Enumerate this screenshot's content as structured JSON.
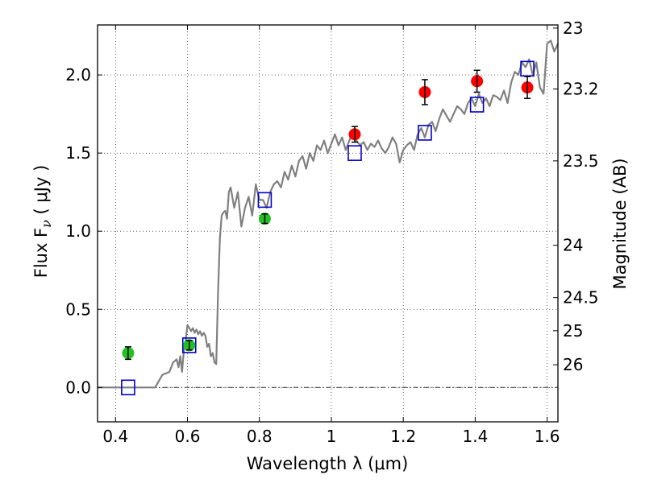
{
  "chart_data": {
    "type": "scatter",
    "title": "",
    "xlabel": "Wavelength  λ (μm)",
    "ylabel": "Flux  F",
    "ylabel_sub": "ν",
    "ylabel_unit": " ( μJy )",
    "y2label": "Magnitude (AB)",
    "xlim": [
      0.35,
      1.63
    ],
    "ylim": [
      -0.22,
      2.32
    ],
    "grid": true,
    "x_ticks": [
      {
        "value": 0.4,
        "label": "0.4"
      },
      {
        "value": 0.6,
        "label": "0.6"
      },
      {
        "value": 0.8,
        "label": "0.8"
      },
      {
        "value": 1.0,
        "label": "1"
      },
      {
        "value": 1.2,
        "label": "1.2"
      },
      {
        "value": 1.4,
        "label": "1.4"
      },
      {
        "value": 1.6,
        "label": "1.6"
      }
    ],
    "y_ticks": [
      {
        "value": 0.0,
        "label": "0.0"
      },
      {
        "value": 0.5,
        "label": "0.5"
      },
      {
        "value": 1.0,
        "label": "1.0"
      },
      {
        "value": 1.5,
        "label": "1.5"
      },
      {
        "value": 2.0,
        "label": "2.0"
      }
    ],
    "y2_ticks": [
      {
        "label": "23",
        "flux": 2.3
      },
      {
        "label": "23.2",
        "flux": 1.91
      },
      {
        "label": "23.5",
        "flux": 1.45
      },
      {
        "label": "24",
        "flux": 0.91
      },
      {
        "label": "24.5",
        "flux": 0.575
      },
      {
        "label": "25",
        "flux": 0.363
      },
      {
        "label": "26",
        "flux": 0.145
      }
    ],
    "model_spectrum": {
      "color": "#808080",
      "x": [
        0.35,
        0.51,
        0.53,
        0.55,
        0.56,
        0.57,
        0.575,
        0.58,
        0.585,
        0.59,
        0.595,
        0.6,
        0.605,
        0.61,
        0.615,
        0.62,
        0.625,
        0.63,
        0.635,
        0.64,
        0.645,
        0.65,
        0.655,
        0.66,
        0.665,
        0.67,
        0.675,
        0.68,
        0.685,
        0.69,
        0.695,
        0.7,
        0.705,
        0.71,
        0.715,
        0.72,
        0.73,
        0.74,
        0.75,
        0.76,
        0.77,
        0.78,
        0.79,
        0.8,
        0.81,
        0.82,
        0.83,
        0.84,
        0.85,
        0.86,
        0.87,
        0.88,
        0.89,
        0.9,
        0.91,
        0.92,
        0.93,
        0.94,
        0.95,
        0.96,
        0.97,
        0.98,
        0.99,
        1.0,
        1.01,
        1.02,
        1.03,
        1.04,
        1.05,
        1.06,
        1.07,
        1.08,
        1.09,
        1.1,
        1.11,
        1.12,
        1.13,
        1.14,
        1.15,
        1.16,
        1.17,
        1.18,
        1.19,
        1.2,
        1.21,
        1.22,
        1.23,
        1.24,
        1.25,
        1.26,
        1.27,
        1.28,
        1.29,
        1.3,
        1.31,
        1.32,
        1.33,
        1.34,
        1.35,
        1.36,
        1.37,
        1.38,
        1.39,
        1.4,
        1.41,
        1.42,
        1.43,
        1.44,
        1.45,
        1.46,
        1.47,
        1.48,
        1.49,
        1.5,
        1.51,
        1.52,
        1.53,
        1.54,
        1.55,
        1.56,
        1.57,
        1.58,
        1.59,
        1.6,
        1.61,
        1.62,
        1.63
      ],
      "y": [
        0.0,
        0.0,
        0.08,
        0.1,
        0.16,
        0.18,
        0.13,
        0.2,
        0.1,
        0.24,
        0.3,
        0.4,
        0.38,
        0.36,
        0.38,
        0.35,
        0.37,
        0.34,
        0.36,
        0.33,
        0.35,
        0.33,
        0.26,
        0.28,
        0.2,
        0.22,
        0.16,
        0.15,
        0.6,
        0.95,
        1.1,
        1.12,
        1.13,
        1.08,
        1.25,
        1.28,
        1.15,
        1.25,
        1.03,
        1.15,
        1.22,
        1.1,
        1.3,
        1.2,
        1.2,
        1.15,
        1.25,
        1.3,
        1.32,
        1.28,
        1.38,
        1.33,
        1.42,
        1.35,
        1.45,
        1.48,
        1.4,
        1.5,
        1.45,
        1.55,
        1.52,
        1.58,
        1.5,
        1.56,
        1.62,
        1.55,
        1.6,
        1.52,
        1.58,
        1.63,
        1.58,
        1.55,
        1.57,
        1.52,
        1.56,
        1.54,
        1.58,
        1.53,
        1.5,
        1.54,
        1.6,
        1.56,
        1.44,
        1.52,
        1.55,
        1.57,
        1.52,
        1.62,
        1.66,
        1.6,
        1.68,
        1.7,
        1.64,
        1.72,
        1.78,
        1.74,
        1.7,
        1.75,
        1.8,
        1.78,
        1.75,
        1.82,
        1.85,
        1.8,
        1.88,
        1.82,
        1.85,
        1.8,
        1.87,
        1.86,
        1.84,
        1.9,
        1.82,
        1.95,
        2.02,
        2.0,
        2.08,
        2.05,
        2.1,
        2.0,
        2.08,
        1.92,
        1.88,
        2.2,
        2.22,
        2.15,
        2.2
      ]
    },
    "series": [
      {
        "marker": "square",
        "color": "#0000cc",
        "x": [
          0.435,
          0.605,
          0.815,
          1.065,
          1.26,
          1.405,
          1.545
        ],
        "y": [
          0.0,
          0.27,
          1.2,
          1.5,
          1.63,
          1.81,
          2.04
        ]
      },
      {
        "marker": "circle",
        "color": "#22c022",
        "x": [
          0.435,
          0.605,
          0.815
        ],
        "y": [
          0.22,
          0.27,
          1.08
        ],
        "err": [
          0.04,
          0.03,
          0.03
        ]
      },
      {
        "marker": "circle",
        "color": "#ff0000",
        "x": [
          1.065,
          1.26,
          1.405,
          1.545
        ],
        "y": [
          1.62,
          1.89,
          1.96,
          1.92
        ],
        "err": [
          0.05,
          0.08,
          0.07,
          0.07
        ]
      }
    ]
  }
}
